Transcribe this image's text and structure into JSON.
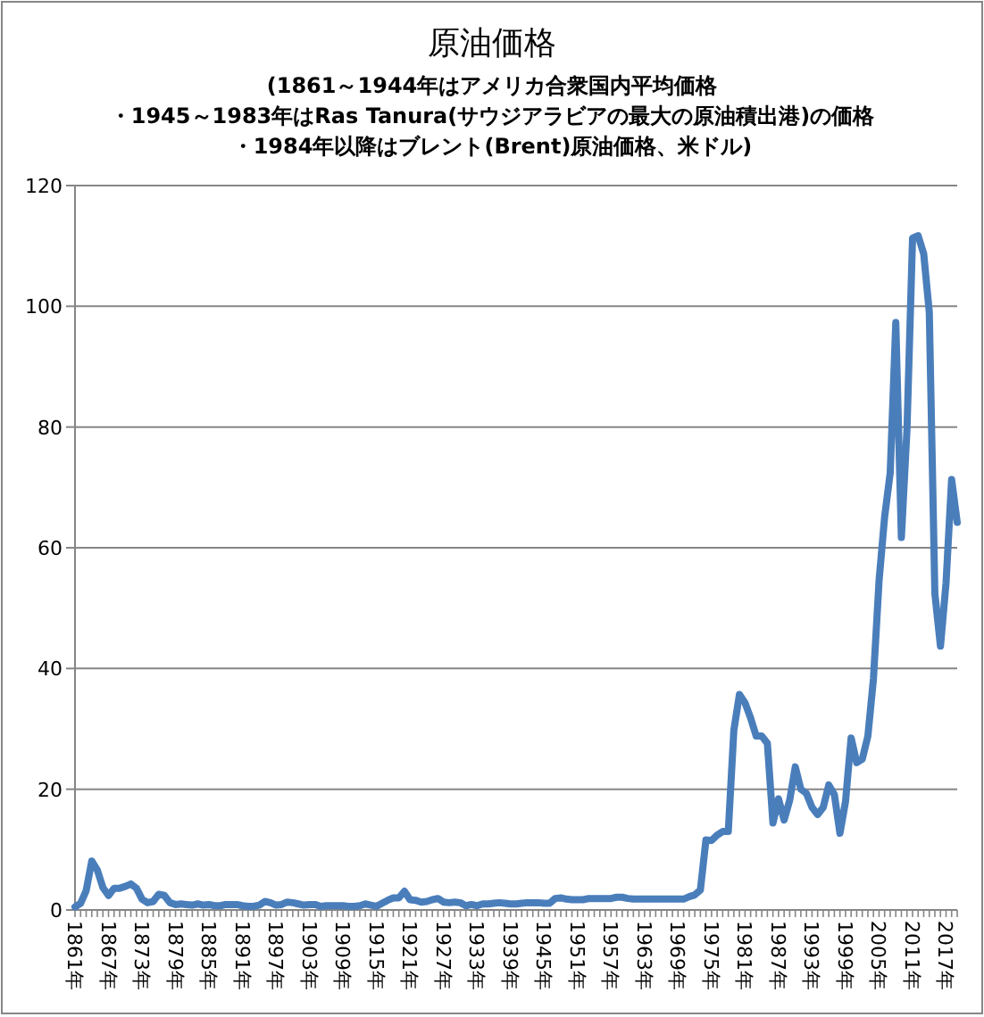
{
  "chart_data": {
    "type": "line",
    "title": "原油価格",
    "subtitle": "(1861～1944年はアメリカ合衆国内平均価格・1945～1983年はRas Tanura(サウジアラビアの最大の原油積出港)の価格・1984年以降はブレント(Brent)原油価格、米ドル)",
    "categories": [
      "1861年",
      null,
      null,
      null,
      null,
      null,
      "1867年",
      null,
      null,
      null,
      null,
      null,
      "1873年",
      null,
      null,
      null,
      null,
      null,
      "1879年",
      null,
      null,
      null,
      null,
      null,
      "1885年",
      null,
      null,
      null,
      null,
      null,
      "1891年",
      null,
      null,
      null,
      null,
      null,
      "1897年",
      null,
      null,
      null,
      null,
      null,
      "1903年",
      null,
      null,
      null,
      null,
      null,
      "1909年",
      null,
      null,
      null,
      null,
      null,
      "1915年",
      null,
      null,
      null,
      null,
      null,
      "1921年",
      null,
      null,
      null,
      null,
      null,
      "1927年",
      null,
      null,
      null,
      null,
      null,
      "1933年",
      null,
      null,
      null,
      null,
      null,
      "1939年",
      null,
      null,
      null,
      null,
      null,
      "1945年",
      null,
      null,
      null,
      null,
      null,
      "1951年",
      null,
      null,
      null,
      null,
      null,
      "1957年",
      null,
      null,
      null,
      null,
      null,
      "1963年",
      null,
      null,
      null,
      null,
      null,
      "1969年",
      null,
      null,
      null,
      null,
      null,
      "1975年",
      null,
      null,
      null,
      null,
      null,
      "1981年",
      null,
      null,
      null,
      null,
      null,
      "1987年",
      null,
      null,
      null,
      null,
      null,
      "1993年",
      null,
      null,
      null,
      null,
      null,
      "1999年",
      null,
      null,
      null,
      null,
      null,
      "2005年",
      null,
      null,
      null,
      null,
      null,
      "2011年",
      null,
      null,
      null,
      null,
      null,
      "2017年",
      null,
      null
    ],
    "series": [
      {
        "color": "#4a7ebb",
        "values": [
          0.5,
          1.1,
          3.2,
          8.1,
          6.6,
          3.7,
          2.4,
          3.6,
          3.6,
          3.9,
          4.3,
          3.6,
          1.8,
          1.2,
          1.4,
          2.6,
          2.4,
          1.2,
          0.9,
          1.0,
          0.9,
          0.8,
          1.0,
          0.8,
          0.9,
          0.7,
          0.7,
          0.9,
          0.9,
          0.9,
          0.7,
          0.6,
          0.6,
          0.8,
          1.4,
          1.2,
          0.8,
          0.9,
          1.3,
          1.2,
          1.0,
          0.8,
          0.9,
          0.9,
          0.6,
          0.7,
          0.7,
          0.7,
          0.7,
          0.6,
          0.6,
          0.7,
          1.0,
          0.8,
          0.6,
          1.1,
          1.6,
          2.0,
          2.0,
          3.1,
          1.7,
          1.6,
          1.3,
          1.4,
          1.7,
          1.9,
          1.3,
          1.2,
          1.3,
          1.2,
          0.7,
          0.9,
          0.7,
          1.0,
          1.0,
          1.1,
          1.2,
          1.1,
          1.0,
          1.0,
          1.1,
          1.2,
          1.2,
          1.2,
          1.1,
          1.1,
          1.9,
          2.0,
          1.8,
          1.7,
          1.7,
          1.7,
          1.9,
          1.9,
          1.9,
          1.9,
          1.9,
          2.1,
          2.1,
          1.9,
          1.8,
          1.8,
          1.8,
          1.8,
          1.8,
          1.8,
          1.8,
          1.8,
          1.8,
          1.8,
          2.2,
          2.5,
          3.3,
          11.6,
          11.5,
          12.4,
          13.0,
          13.0,
          29.8,
          35.7,
          34.3,
          31.8,
          28.8,
          28.8,
          27.6,
          14.4,
          18.4,
          14.9,
          18.2,
          23.7,
          20.0,
          19.3,
          17.0,
          15.8,
          17.0,
          20.7,
          19.1,
          12.7,
          18.0,
          28.5,
          24.4,
          25.0,
          28.8,
          38.3,
          54.5,
          65.1,
          72.4,
          97.3,
          61.7,
          79.5,
          111.3,
          111.7,
          108.7,
          99.0,
          52.4,
          43.7,
          54.2,
          71.3,
          64.2
        ]
      }
    ],
    "ylim": [
      0,
      120
    ],
    "yticks": [
      0,
      20,
      40,
      60,
      80,
      100,
      120
    ],
    "grid": "y"
  }
}
